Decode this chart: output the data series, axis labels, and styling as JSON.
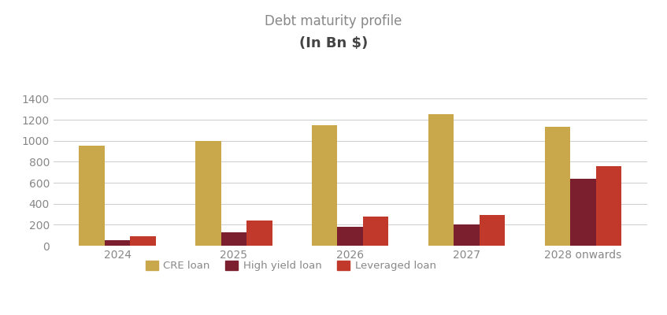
{
  "title_line1": "Debt maturity profile",
  "title_line2": "(In Bn $)",
  "categories": [
    "2024",
    "2025",
    "2026",
    "2027",
    "2028 onwards"
  ],
  "series": {
    "CRE loan": [
      950,
      1000,
      1150,
      1250,
      1130
    ],
    "High yield loan": [
      55,
      130,
      180,
      205,
      635
    ],
    "Leveraged loan": [
      90,
      240,
      275,
      290,
      755
    ]
  },
  "colors": {
    "CRE loan": "#C9A84C",
    "High yield loan": "#7B1F2E",
    "Leveraged loan": "#C0392B"
  },
  "ylim": [
    0,
    1500
  ],
  "yticks": [
    0,
    200,
    400,
    600,
    800,
    1000,
    1200,
    1400
  ],
  "background_color": "#FFFFFF",
  "title_color": "#888888",
  "subtitle_color": "#444444",
  "tick_label_color": "#888888",
  "bar_width": 0.22
}
